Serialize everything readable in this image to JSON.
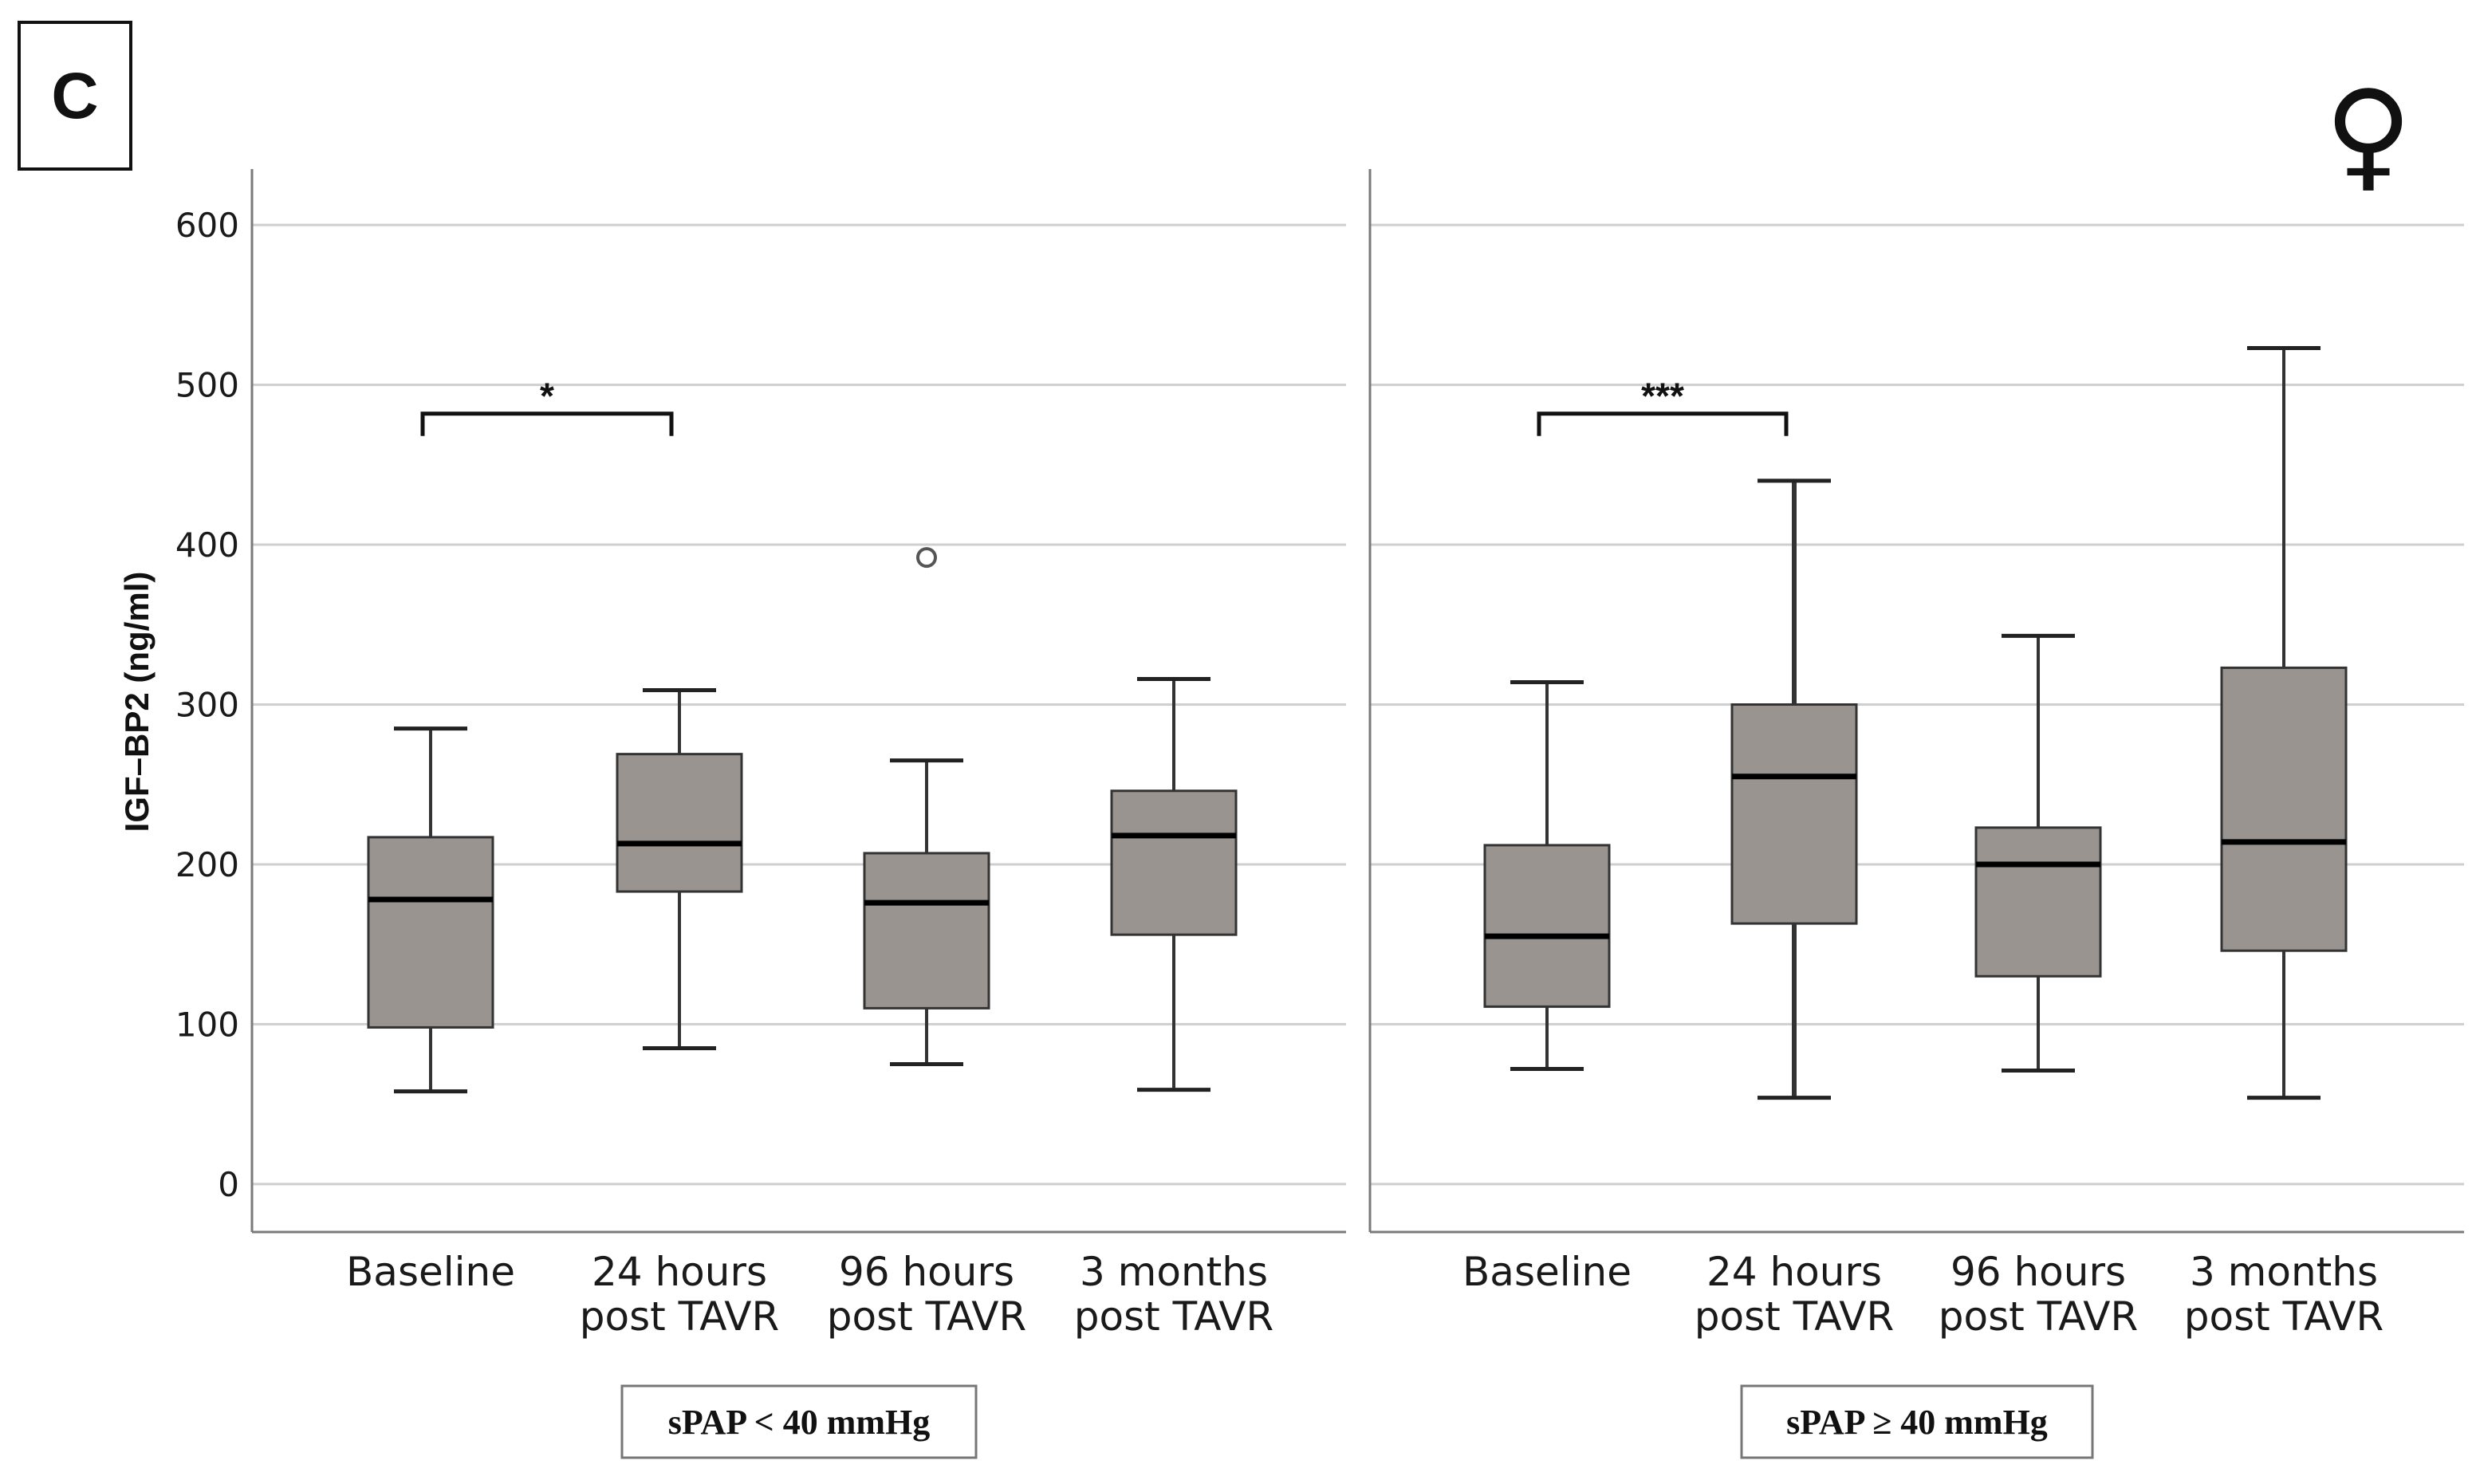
{
  "panel_letter": "C",
  "symbol": "♀",
  "chart_data": {
    "type": "box",
    "ylabel": "IGF–BP2 (ng/ml)",
    "ylim": [
      -30,
      635
    ],
    "yticks": [
      0,
      100,
      200,
      300,
      400,
      500,
      600
    ],
    "grid": true,
    "panels": [
      {
        "group_label": "sPAP < 40 mmHg",
        "categories": [
          {
            "line1": "Baseline",
            "line2": ""
          },
          {
            "line1": "24 hours",
            "line2": "post TAVR"
          },
          {
            "line1": "96 hours",
            "line2": "post TAVR"
          },
          {
            "line1": "3 months",
            "line2": "post TAVR"
          }
        ],
        "boxes": [
          {
            "min": 58,
            "q1": 98,
            "median": 178,
            "q3": 217,
            "max": 285,
            "outliers": []
          },
          {
            "min": 85,
            "q1": 183,
            "median": 213,
            "q3": 269,
            "max": 309,
            "outliers": []
          },
          {
            "min": 75,
            "q1": 110,
            "median": 176,
            "q3": 207,
            "max": 265,
            "outliers": [
              392
            ]
          },
          {
            "min": 59,
            "q1": 156,
            "median": 218,
            "q3": 246,
            "max": 316,
            "outliers": []
          }
        ],
        "significance": {
          "from": 0,
          "to": 1,
          "label": "*",
          "y": 482
        }
      },
      {
        "group_label": "sPAP ≥ 40 mmHg",
        "categories": [
          {
            "line1": "Baseline",
            "line2": ""
          },
          {
            "line1": "24 hours",
            "line2": "post TAVR"
          },
          {
            "line1": "96 hours",
            "line2": "post TAVR"
          },
          {
            "line1": "3 months",
            "line2": "post TAVR"
          }
        ],
        "boxes": [
          {
            "min": 72,
            "q1": 111,
            "median": 155,
            "q3": 212,
            "max": 314,
            "outliers": []
          },
          {
            "min": 54,
            "q1": 163,
            "median": 255,
            "q3": 300,
            "max": 440,
            "outliers": []
          },
          {
            "min": 71,
            "q1": 130,
            "median": 200,
            "q3": 223,
            "max": 343,
            "outliers": []
          },
          {
            "min": 54,
            "q1": 146,
            "median": 214,
            "q3": 323,
            "max": 523,
            "outliers": []
          }
        ],
        "significance": {
          "from": 0,
          "to": 1,
          "label": "***",
          "y": 482
        }
      }
    ]
  }
}
